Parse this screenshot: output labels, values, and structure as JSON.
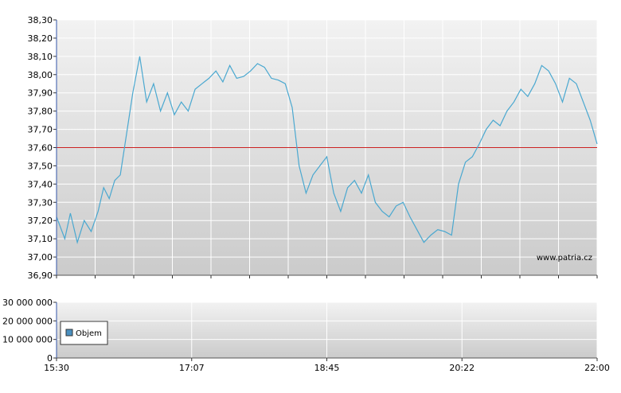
{
  "watermark": "www.patria.cz",
  "colors": {
    "line": "#4aa8d0",
    "reference": "#cc2222",
    "grid": "#ffffff",
    "bg_top": "#f2f2f2",
    "bg_bottom": "#cbcbcb",
    "legend_swatch": "#4a90c0"
  },
  "chart_data": [
    {
      "type": "line",
      "title": "",
      "xlabel": "",
      "ylabel": "",
      "ylim": [
        36.9,
        38.3
      ],
      "y_ticks": [
        "38,30",
        "38,20",
        "38,10",
        "38,00",
        "37,90",
        "37,80",
        "37,70",
        "37,60",
        "37,50",
        "37,40",
        "37,30",
        "37,20",
        "37,10",
        "37,00",
        "36,90"
      ],
      "x_ticks": [
        "15:30",
        "17:07",
        "18:45",
        "20:22",
        "22:00"
      ],
      "reference_line": 37.6,
      "grid": true,
      "series": [
        {
          "x": [
            "15:30",
            "15:36",
            "15:40",
            "15:45",
            "15:50",
            "15:55",
            "16:00",
            "16:04",
            "16:08",
            "16:12",
            "16:16",
            "16:20",
            "16:25",
            "16:30",
            "16:35",
            "16:40",
            "16:45",
            "16:50",
            "16:55",
            "17:00",
            "17:05",
            "17:10",
            "17:15",
            "17:20",
            "17:25",
            "17:30",
            "17:35",
            "17:40",
            "17:45",
            "17:50",
            "17:55",
            "18:00",
            "18:05",
            "18:10",
            "18:15",
            "18:20",
            "18:25",
            "18:30",
            "18:35",
            "18:40",
            "18:45",
            "18:50",
            "18:55",
            "19:00",
            "19:05",
            "19:10",
            "19:15",
            "19:20",
            "19:25",
            "19:30",
            "19:35",
            "19:40",
            "19:45",
            "19:50",
            "19:55",
            "20:00",
            "20:05",
            "20:10",
            "20:15",
            "20:20",
            "20:25",
            "20:30",
            "20:35",
            "20:40",
            "20:45",
            "20:50",
            "20:55",
            "21:00",
            "21:05",
            "21:10",
            "21:15",
            "21:20",
            "21:25",
            "21:30",
            "21:35",
            "21:40",
            "21:45",
            "21:50",
            "21:55",
            "22:00"
          ],
          "values": [
            37.22,
            37.1,
            37.24,
            37.08,
            37.2,
            37.14,
            37.25,
            37.38,
            37.32,
            37.42,
            37.45,
            37.65,
            37.9,
            38.1,
            37.85,
            37.95,
            37.8,
            37.9,
            37.78,
            37.85,
            37.8,
            37.92,
            37.95,
            37.98,
            38.02,
            37.96,
            38.05,
            37.98,
            37.99,
            38.02,
            38.06,
            38.04,
            37.98,
            37.97,
            37.95,
            37.82,
            37.5,
            37.35,
            37.45,
            37.5,
            37.55,
            37.35,
            37.25,
            37.38,
            37.42,
            37.35,
            37.45,
            37.3,
            37.25,
            37.22,
            37.28,
            37.3,
            37.22,
            37.15,
            37.08,
            37.12,
            37.15,
            37.14,
            37.12,
            37.4,
            37.52,
            37.55,
            37.62,
            37.7,
            37.75,
            37.72,
            37.8,
            37.85,
            37.92,
            37.88,
            37.95,
            38.05,
            38.02,
            37.95,
            37.85,
            37.98,
            37.95,
            37.85,
            37.75,
            37.62
          ]
        }
      ]
    },
    {
      "type": "bar",
      "title": "",
      "xlabel": "",
      "ylabel": "",
      "ylim": [
        0,
        30000000
      ],
      "y_ticks": [
        "30 000 000",
        "20 000 000",
        "10 000 000",
        "0"
      ],
      "x_ticks": [
        "15:30",
        "17:07",
        "18:45",
        "20:22",
        "22:00"
      ],
      "grid": true,
      "legend": "top-left",
      "series": [
        {
          "name": "Objem",
          "values": []
        }
      ]
    }
  ]
}
